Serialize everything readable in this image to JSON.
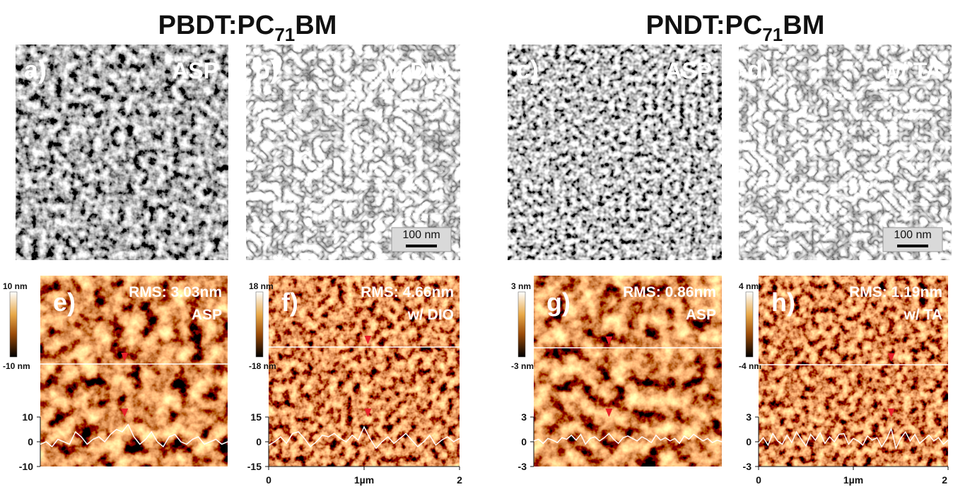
{
  "titles": [
    {
      "pre": "PBDT:PC",
      "sub": "71",
      "post": "BM"
    },
    {
      "pre": "PNDT:PC",
      "sub": "71",
      "post": "BM"
    }
  ],
  "tem_panels": [
    {
      "label": "a)",
      "condition": "ASP"
    },
    {
      "label": "b)",
      "condition": "w/ DIO",
      "scale_bar": "100 nm"
    },
    {
      "label": "c)",
      "condition": "ASP"
    },
    {
      "label": "d)",
      "condition": "w/ TA",
      "scale_bar": "100 nm"
    }
  ],
  "afm_panels": [
    {
      "label": "e)",
      "rms": "RMS: 3.03nm",
      "condition": "ASP",
      "colorbar_max": "10 nm",
      "colorbar_min": "-10 nm",
      "profile": {
        "ylim": [
          -10,
          10
        ],
        "yticks": [
          10,
          0,
          -10
        ],
        "values": [
          -1,
          0,
          -2,
          1,
          0,
          -1,
          4,
          2,
          -1,
          1,
          2,
          0,
          3,
          5,
          4,
          7,
          2,
          -1,
          1,
          4,
          0,
          -2,
          2,
          3,
          0,
          -1,
          1,
          2,
          -1,
          0,
          1,
          -1,
          0
        ]
      }
    },
    {
      "label": "f)",
      "rms": "RMS: 4.66nm",
      "condition": "w/ DIO",
      "colorbar_max": "18 nm",
      "colorbar_min": "-18 nm",
      "profile": {
        "ylim": [
          -15,
          15
        ],
        "yticks": [
          15,
          0,
          -15
        ],
        "values": [
          -2,
          0,
          3,
          -1,
          5,
          6,
          2,
          -3,
          0,
          4,
          3,
          5,
          2,
          0,
          4,
          1,
          9,
          2,
          -4,
          0,
          3,
          -1,
          2,
          5,
          1,
          -3,
          0,
          4,
          -2,
          1,
          3,
          0,
          2
        ]
      },
      "xaxis": {
        "xlim": [
          0,
          2
        ],
        "xticks": [
          0,
          {
            "value": 1,
            "label": "1µm"
          },
          2
        ]
      }
    },
    {
      "label": "g)",
      "rms": "RMS: 0.86nm",
      "condition": "ASP",
      "colorbar_max": "3 nm",
      "colorbar_min": "-3 nm",
      "profile": {
        "ylim": [
          -3,
          3
        ],
        "yticks": [
          3,
          0,
          -3
        ],
        "values": [
          0.1,
          0.3,
          -0.2,
          0.4,
          0.2,
          -0.1,
          0.5,
          0.3,
          0.8,
          0.2,
          0.9,
          -0.3,
          0.4,
          0.6,
          0.1,
          0.5,
          1.0,
          0.3,
          -0.2,
          0.5,
          0.7,
          0.4,
          0.1,
          0.6,
          0.3,
          -0.1,
          0.8,
          0.2,
          0.5,
          0.1,
          0.4,
          -0.2,
          0.7,
          0.3,
          0.9,
          0.5,
          0.1,
          0.4,
          -0.1,
          0.2,
          0.0
        ]
      }
    },
    {
      "label": "h)",
      "rms": "RMS: 1.19nm",
      "condition": "w/ TA",
      "colorbar_max": "4 nm",
      "colorbar_min": "-4 nm",
      "profile": {
        "ylim": [
          -3,
          3
        ],
        "yticks": [
          3,
          0,
          -3
        ],
        "values": [
          -0.2,
          0.5,
          -0.4,
          1.0,
          0.1,
          -0.3,
          0.8,
          -0.1,
          1.2,
          0.3,
          -0.5,
          0.9,
          0.2,
          1.1,
          -0.2,
          0.6,
          0.0,
          0.9,
          1.0,
          -0.3,
          0.4,
          0.1,
          -0.4,
          0.7,
          0.2,
          0.5,
          -0.6,
          0.3,
          1.6,
          -0.8,
          0.4,
          1.2,
          0.1,
          0.9,
          -0.2,
          0.3,
          0.8,
          0.1,
          0.5,
          -0.3,
          0.2
        ]
      },
      "xaxis": {
        "xlim": [
          0,
          2
        ],
        "xticks": [
          0,
          {
            "value": 1,
            "label": "1µm"
          },
          2
        ]
      }
    }
  ]
}
